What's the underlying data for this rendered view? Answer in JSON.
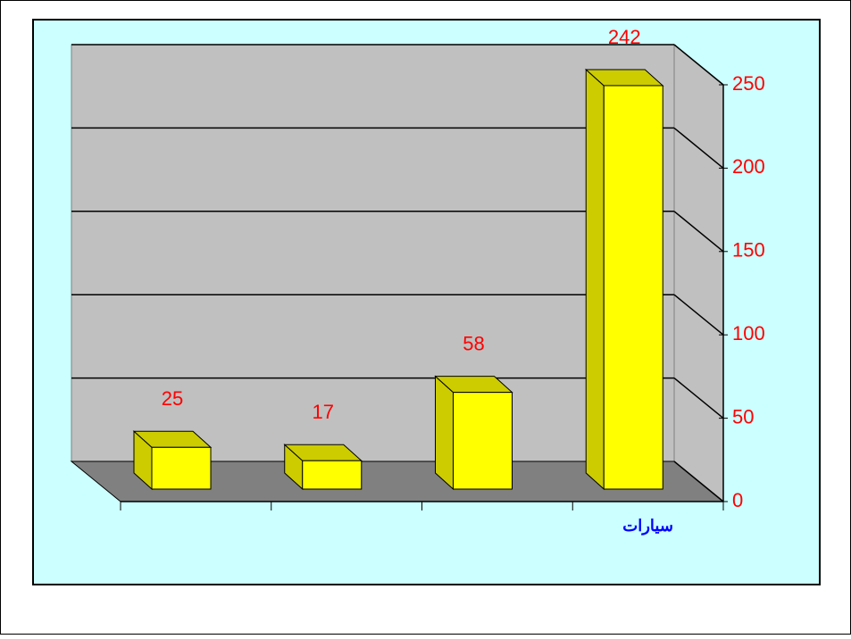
{
  "chart_data": {
    "type": "bar3d",
    "categories": [
      null,
      null,
      null,
      "سيارات"
    ],
    "values": [
      25,
      17,
      58,
      242
    ],
    "color": "#ffff00",
    "ylim": [
      0,
      250
    ],
    "yticks": [
      0,
      50,
      100,
      150,
      200,
      250
    ],
    "grid": true
  }
}
